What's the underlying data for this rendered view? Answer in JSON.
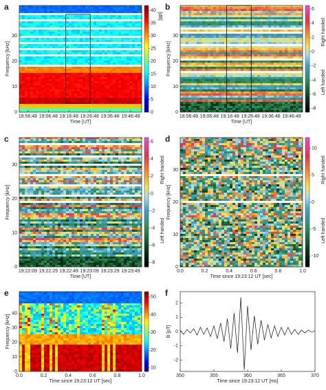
{
  "chart_data": [
    {
      "type": "spectrogram",
      "panel_label": "a",
      "colormap": "jet",
      "pattern": "a",
      "ylabel": "Frequency [kHz]",
      "xlabel": "Time [UT]",
      "x_tick_labels": [
        "18:56:48",
        "19:06:48",
        "19:16:48",
        "19:26:48",
        "19:36:48",
        "19:46:48"
      ],
      "ylim": [
        0,
        42
      ],
      "yticks": [
        0,
        10,
        20,
        30
      ],
      "colorbar": {
        "label": "[dB]",
        "clim": [
          0,
          42
        ],
        "ticks": [
          0,
          5,
          10,
          15,
          20,
          25,
          30,
          35,
          40
        ]
      }
    },
    {
      "type": "spectrogram",
      "panel_label": "b",
      "colormap": "diverging",
      "pattern": "b",
      "ylabel": "Frequency [kHz]",
      "xlabel": "Time [UT]",
      "x_tick_labels": [
        "18:56:48",
        "19:06:48",
        "19:16:48",
        "19:26:48",
        "19:36:48",
        "19:46:48"
      ],
      "ylim": [
        0,
        42
      ],
      "yticks": [
        0,
        10,
        20,
        30
      ],
      "colorbar": {
        "clim": [
          -8.5,
          6.5
        ],
        "ticks": [
          6,
          4,
          2,
          0,
          -2,
          -4,
          -6,
          -8
        ],
        "upper_label": "Right handed",
        "lower_label": "Left handed"
      }
    },
    {
      "type": "spectrogram",
      "panel_label": "c",
      "colormap": "diverging",
      "pattern": "c",
      "ylabel": "Frequency [kHz]",
      "xlabel": "Time [UT]",
      "x_tick_labels": [
        "19:22:09",
        "19:22:29",
        "19:22:49",
        "19:23:09",
        "19:23:29",
        "19:23:49"
      ],
      "ylim": [
        0,
        38
      ],
      "yticks": [
        0,
        10,
        20,
        30
      ],
      "colorbar": {
        "clim": [
          -8.5,
          6.5
        ],
        "ticks": [
          6,
          4,
          2,
          0,
          -2,
          -4,
          -6,
          -8
        ],
        "upper_label": "Right handed",
        "lower_label": "Left handed"
      }
    },
    {
      "type": "spectrogram",
      "panel_label": "d",
      "colormap": "diverging",
      "pattern": "d",
      "ylabel": "Frequency [kHz]",
      "xlabel": "Time since 19:23:12 UT [sec]",
      "xlim": [
        0,
        1
      ],
      "xticks": [
        {
          "value": 0,
          "label": "0.0"
        },
        0.2,
        0.4,
        0.6,
        0.8,
        {
          "value": 1,
          "label": "1.0"
        }
      ],
      "ylim": [
        0,
        40
      ],
      "yticks": [
        0,
        10,
        20,
        30
      ],
      "colorbar": {
        "clim": [
          -12,
          12
        ],
        "ticks": [
          10,
          5,
          0,
          -5,
          -10
        ],
        "upper_label": "Right handed",
        "lower_label": "Left handed"
      }
    },
    {
      "type": "spectrogram",
      "panel_label": "e",
      "colormap": "jet",
      "pattern": "e",
      "ylabel": "Frequency [kHz]",
      "xlabel": "Time since 19:23:12 UT [sec]",
      "xlim": [
        0,
        1
      ],
      "xticks": [
        {
          "value": 0,
          "label": "0.0"
        },
        0.2,
        0.4,
        0.6,
        0.8,
        {
          "value": 1,
          "label": "1.0"
        }
      ],
      "ylim": [
        0,
        55
      ],
      "yticks": [
        0,
        10,
        20,
        30,
        40
      ],
      "colorbar": {
        "clim": [
          8,
          53
        ],
        "ticks": [
          10,
          20,
          30,
          40,
          50
        ]
      }
    },
    {
      "type": "line",
      "panel_label": "f",
      "color": "#111111",
      "ylabel": "B [pT]",
      "xlabel": "Time since 19:23:12 UT [ms]",
      "xlim": [
        350,
        370
      ],
      "xticks": [
        350,
        355,
        360,
        365,
        370
      ],
      "ylim": [
        -2.8,
        2.8
      ],
      "yticks": [
        -2,
        -1,
        0,
        1,
        2
      ],
      "x": [
        350,
        350.5,
        351,
        351.5,
        352,
        352.5,
        353,
        353.5,
        354,
        354.5,
        355,
        355.5,
        356,
        356.5,
        357,
        357.5,
        358,
        358.5,
        359,
        359.5,
        360,
        360.5,
        361,
        361.5,
        362,
        362.5,
        363,
        363.5,
        364,
        364.5,
        365,
        365.5,
        366,
        366.5,
        367,
        367.5,
        368,
        368.5,
        369,
        369.5,
        370
      ],
      "values": [
        0.1,
        -0.2,
        0.15,
        -0.1,
        0.2,
        -0.25,
        0.3,
        -0.2,
        0.25,
        -0.35,
        0.4,
        -0.5,
        0.6,
        -0.7,
        0.9,
        -1.2,
        1.3,
        -1.5,
        2.4,
        -2.7,
        1.8,
        -1.3,
        1.1,
        -0.9,
        0.8,
        -0.6,
        0.5,
        -0.45,
        0.4,
        -0.35,
        0.3,
        -0.25,
        0.3,
        -0.2,
        0.15,
        -0.2,
        0.1,
        -0.1,
        0.1,
        -0.05,
        0.05
      ]
    }
  ]
}
